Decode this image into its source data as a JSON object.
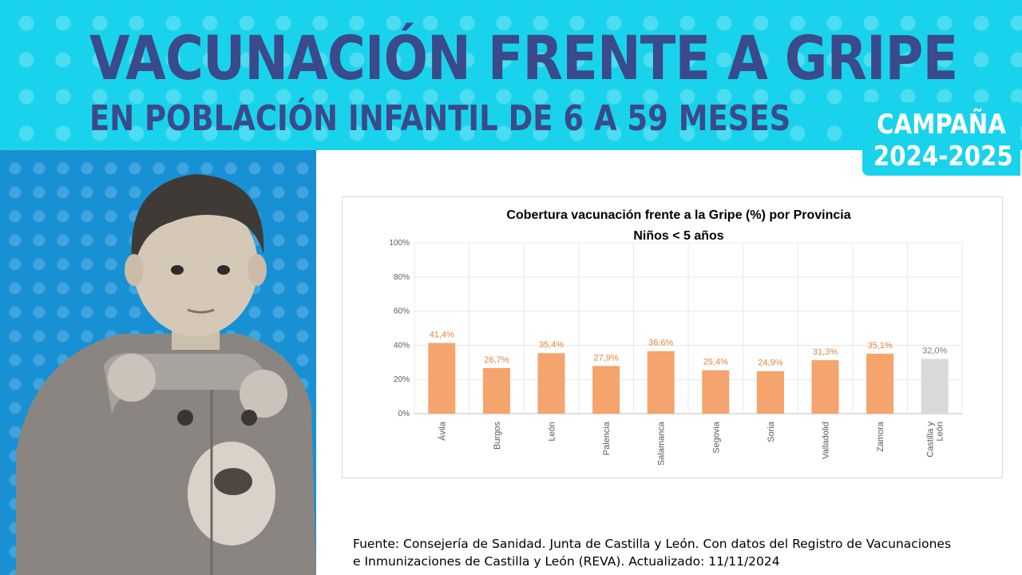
{
  "banner": {
    "title": "VACUNACIÓN FRENTE A GRIPE",
    "subtitle": "EN POBLACIÓN INFANTIL DE 6 A 59 MESES",
    "campaign_label": "CAMPAÑA",
    "campaign_years": "2024-2025",
    "background_color": "#19d3ec",
    "title_color": "#3a4a8a"
  },
  "photo": {
    "description_icon": "child-photo",
    "background_color": "#1790d4"
  },
  "chart_data": {
    "type": "bar",
    "title": "Cobertura vacunación frente a la Gripe (%) por Provincia",
    "subtitle": "Niños < 5 años",
    "categories": [
      "Ávila",
      "Burgos",
      "León",
      "Palencia",
      "Salamanca",
      "Segovia",
      "Soria",
      "Valladolid",
      "Zamora",
      "Castilla y León"
    ],
    "category_lines": [
      [
        "Ávila"
      ],
      [
        "Burgos"
      ],
      [
        "León"
      ],
      [
        "Palencia"
      ],
      [
        "Salamanca"
      ],
      [
        "Segovia"
      ],
      [
        "Soria"
      ],
      [
        "Valladolid"
      ],
      [
        "Zamora"
      ],
      [
        "Castilla y",
        "León"
      ]
    ],
    "values": [
      41.4,
      26.7,
      35.4,
      27.9,
      36.6,
      25.4,
      24.9,
      31.3,
      35.1,
      32.0
    ],
    "value_labels": [
      "41,4%",
      "26,7%",
      "35,4%",
      "27,9%",
      "36,6%",
      "25,4%",
      "24,9%",
      "31,3%",
      "35,1%",
      "32,0%"
    ],
    "highlight_index": 9,
    "ylim": [
      0,
      100
    ],
    "yticks": [
      0,
      20,
      40,
      60,
      80,
      100
    ],
    "ytick_labels": [
      "0%",
      "20%",
      "40%",
      "60%",
      "80%",
      "100%"
    ],
    "xlabel": "",
    "ylabel": "",
    "grid": true,
    "colors": {
      "bar": "#f4a46c",
      "highlight_bar": "#d9d9d9",
      "label": "#e4843e",
      "highlight_label": "#7f7f7f",
      "grid": "#e8e8e8"
    }
  },
  "source": {
    "line1": "Fuente: Consejería de Sanidad. Junta de Castilla y León.  Con datos del Registro de Vacunaciones",
    "line2": "e Inmunizaciones  de Castilla y León (REVA). Actualizado: 11/11/2024"
  }
}
